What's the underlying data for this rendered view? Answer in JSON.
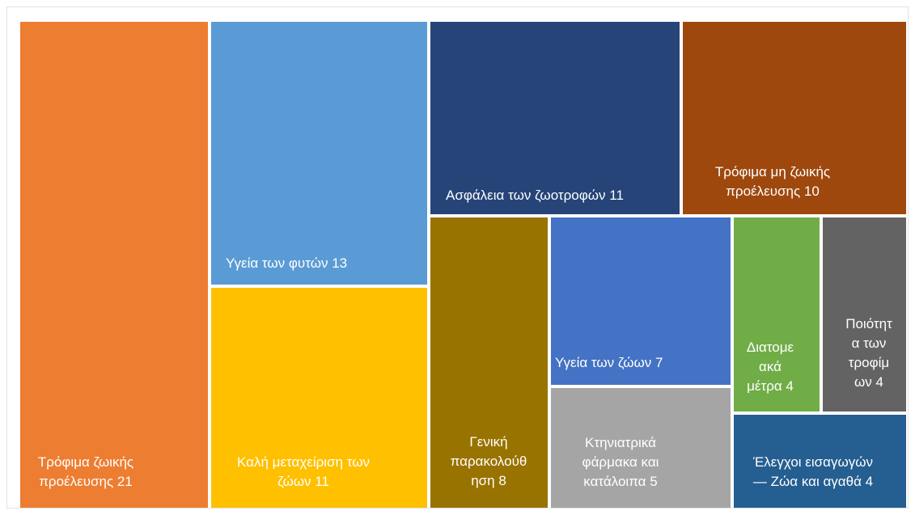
{
  "chart_data": {
    "type": "treemap",
    "title": "",
    "items": [
      {
        "name": "Τρόφιμα ζωικής προέλευσης",
        "value": 21,
        "color": "#ED7D31",
        "label_lines": [
          "Τρόφιμα ζωικής",
          "προέλευσης 21"
        ]
      },
      {
        "name": "Υγεία των φυτών",
        "value": 13,
        "color": "#5B9BD5",
        "label_lines": [
          "Υγεία των φυτών 13"
        ]
      },
      {
        "name": "Καλή μεταχείριση των ζώων",
        "value": 11,
        "color": "#FFC000",
        "label_lines": [
          "Καλή μεταχείριση των",
          "ζώων 11"
        ]
      },
      {
        "name": "Ασφάλεια των ζωοτροφών",
        "value": 11,
        "color": "#264478",
        "label_lines": [
          "Ασφάλεια των ζωοτροφών 11"
        ]
      },
      {
        "name": "Τρόφιμα μη ζωικής προέλευσης",
        "value": 10,
        "color": "#9E480E",
        "label_lines": [
          "Τρόφιμα μη ζωικής",
          "προέλευσης 10"
        ]
      },
      {
        "name": "Γενική παρακολούθηση",
        "value": 8,
        "color": "#997300",
        "label_lines": [
          "Γενική",
          "παρακολούθ",
          "ηση 8"
        ]
      },
      {
        "name": "Υγεία των ζώων",
        "value": 7,
        "color": "#4472C4",
        "label_lines": [
          "Υγεία των ζώων 7"
        ]
      },
      {
        "name": "Κτηνιατρικά φάρμακα και κατάλοιπα",
        "value": 5,
        "color": "#A5A5A5",
        "label_lines": [
          "Κτηνιατρικά",
          "φάρμακα και",
          "κατάλοιπα 5"
        ]
      },
      {
        "name": "Διατομεακά μέτρα",
        "value": 4,
        "color": "#70AD47",
        "label_lines": [
          "Διατομε",
          "ακά",
          "μέτρα 4"
        ]
      },
      {
        "name": "Ποιότητα των τροφίμων",
        "value": 4,
        "color": "#636363",
        "label_lines": [
          "Ποιότητ",
          "α των",
          "τροφίμ",
          "ων 4"
        ]
      },
      {
        "name": "Έλεγχοι εισαγωγών — Ζώα και αγαθά",
        "value": 4,
        "color": "#255E91",
        "label_lines": [
          "Έλεγχοι εισαγωγών",
          "— Ζώα και αγαθά 4"
        ]
      }
    ]
  }
}
